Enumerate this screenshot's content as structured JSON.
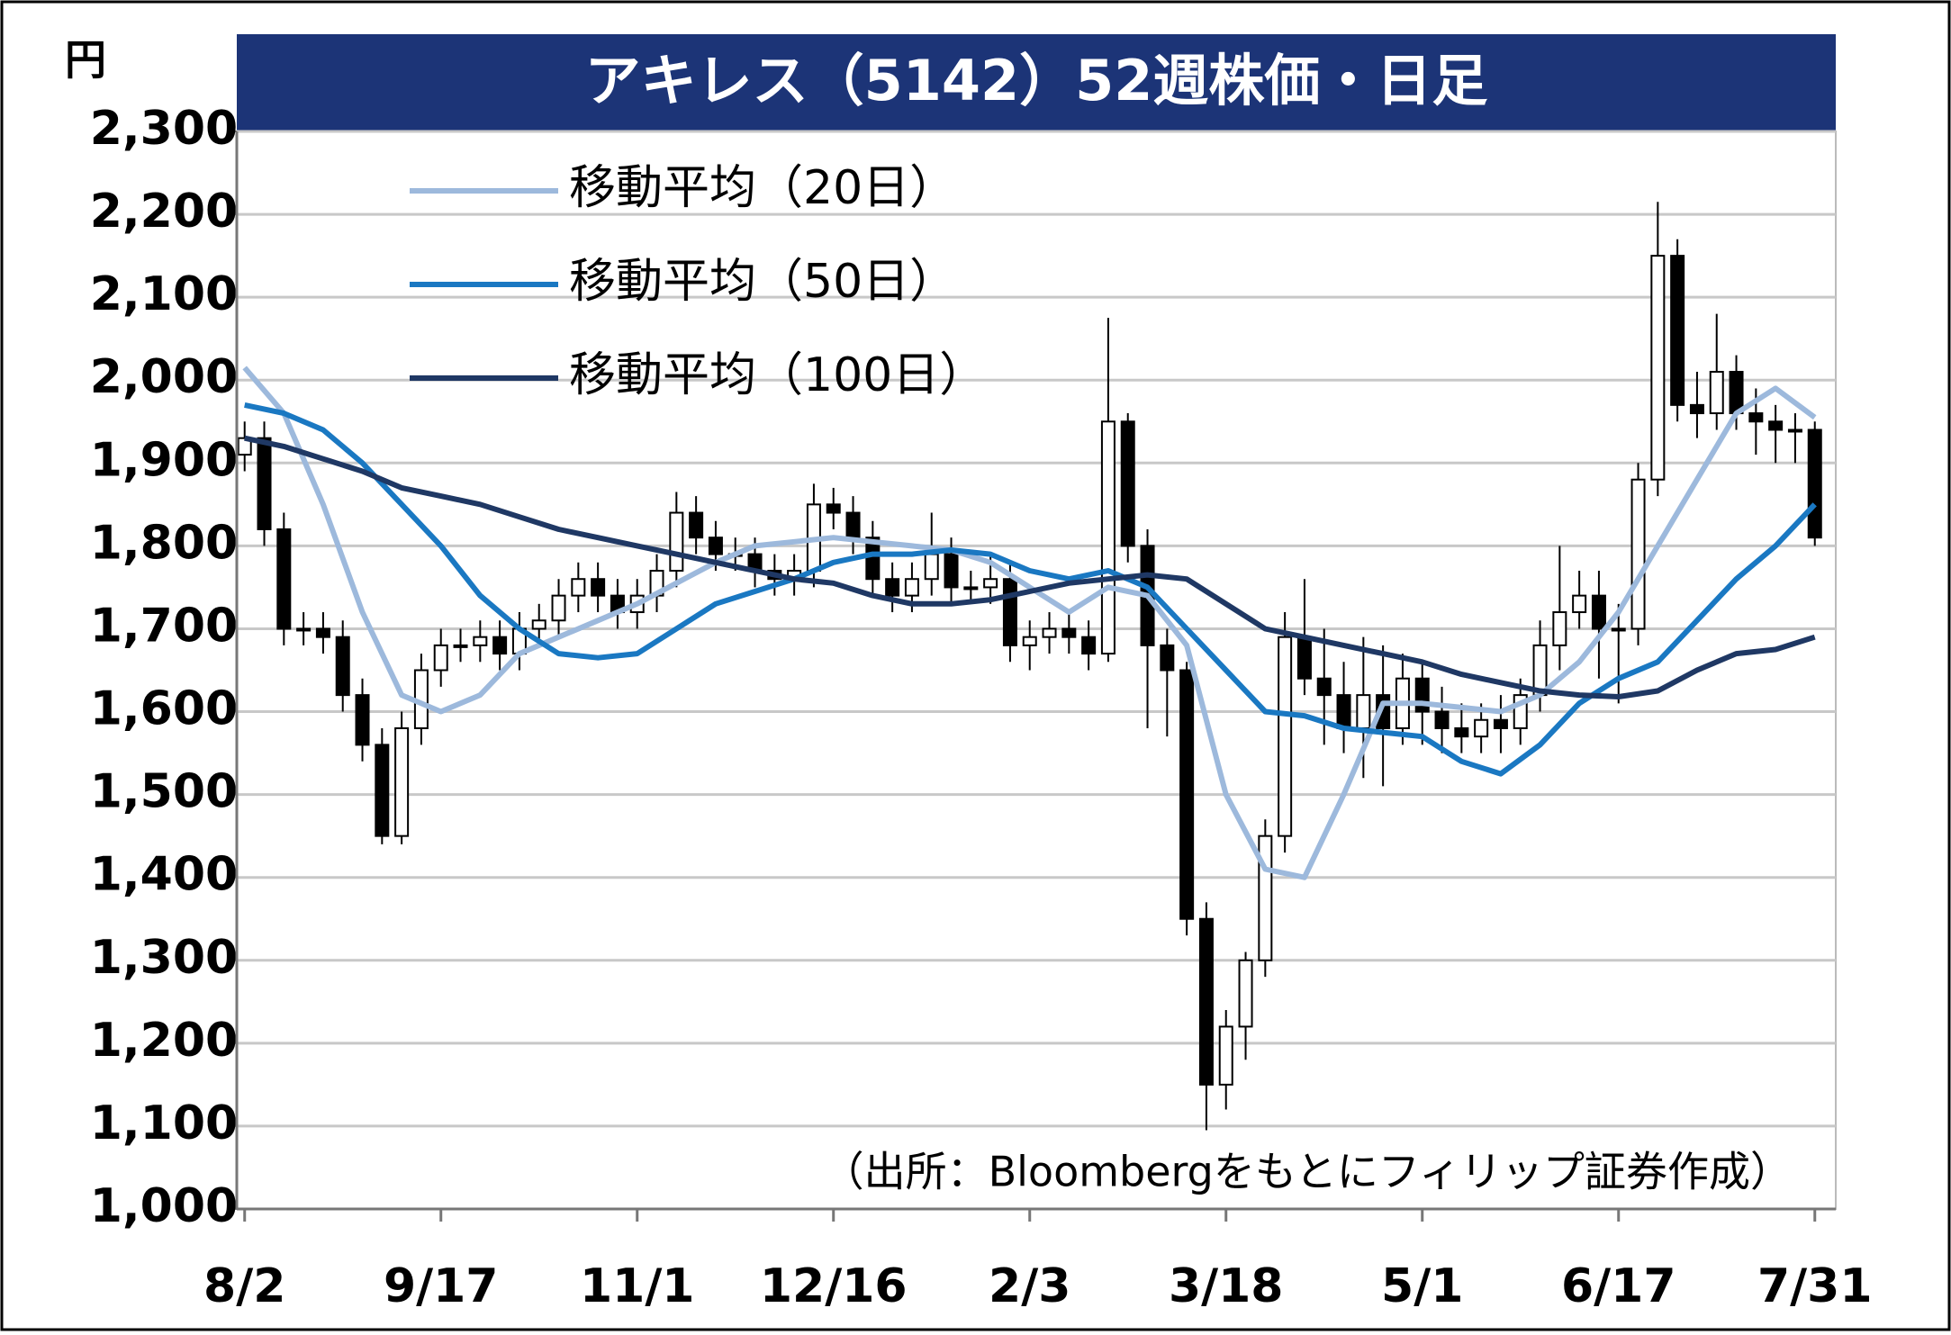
{
  "chart_data": {
    "type": "candlestick",
    "title": "アキレス（5142）52週株価・日足",
    "y_unit": "円",
    "source": "（出所：Bloombergをもとにフィリップ証券作成）",
    "up_color": "#ffffff",
    "down_color": "#000000",
    "grid": true,
    "xlim": [
      -1.2,
      243.2
    ],
    "ylim": [
      1000,
      2300
    ],
    "xticks": [
      {
        "value": 0,
        "label": "8/2"
      },
      {
        "value": 30,
        "label": "9/17"
      },
      {
        "value": 60,
        "label": "11/1"
      },
      {
        "value": 90,
        "label": "12/16"
      },
      {
        "value": 120,
        "label": "2/3"
      },
      {
        "value": 150,
        "label": "3/18"
      },
      {
        "value": 180,
        "label": "5/1"
      },
      {
        "value": 210,
        "label": "6/17"
      },
      {
        "value": 240,
        "label": "7/31"
      }
    ],
    "yticks": [
      {
        "value": 1000,
        "label": "1,000"
      },
      {
        "value": 1100,
        "label": "1,100"
      },
      {
        "value": 1200,
        "label": "1,200"
      },
      {
        "value": 1300,
        "label": "1,300"
      },
      {
        "value": 1400,
        "label": "1,400"
      },
      {
        "value": 1500,
        "label": "1,500"
      },
      {
        "value": 1600,
        "label": "1,600"
      },
      {
        "value": 1700,
        "label": "1,700"
      },
      {
        "value": 1800,
        "label": "1,800"
      },
      {
        "value": 1900,
        "label": "1,900"
      },
      {
        "value": 2000,
        "label": "2,000"
      },
      {
        "value": 2100,
        "label": "2,100"
      },
      {
        "value": 2200,
        "label": "2,200"
      },
      {
        "value": 2300,
        "label": "2,300"
      }
    ],
    "x": [
      0,
      3,
      6,
      9,
      12,
      15,
      18,
      21,
      24,
      27,
      30,
      33,
      36,
      39,
      42,
      45,
      48,
      51,
      54,
      57,
      60,
      63,
      66,
      69,
      72,
      75,
      78,
      81,
      84,
      87,
      90,
      93,
      96,
      99,
      102,
      105,
      108,
      111,
      114,
      117,
      120,
      123,
      126,
      129,
      132,
      135,
      138,
      141,
      144,
      147,
      150,
      153,
      156,
      159,
      162,
      165,
      168,
      171,
      174,
      177,
      180,
      183,
      186,
      189,
      192,
      195,
      198,
      201,
      204,
      207,
      210,
      213,
      216,
      219,
      222,
      225,
      228,
      231,
      234,
      237,
      240
    ],
    "open": [
      1910,
      1930,
      1820,
      1700,
      1700,
      1690,
      1620,
      1560,
      1450,
      1580,
      1650,
      1680,
      1680,
      1690,
      1670,
      1700,
      1710,
      1740,
      1760,
      1740,
      1720,
      1740,
      1770,
      1840,
      1810,
      1790,
      1790,
      1770,
      1760,
      1770,
      1850,
      1840,
      1810,
      1760,
      1740,
      1760,
      1790,
      1750,
      1750,
      1760,
      1680,
      1690,
      1700,
      1690,
      1670,
      1950,
      1800,
      1680,
      1650,
      1350,
      1150,
      1220,
      1300,
      1450,
      1690,
      1640,
      1620,
      1580,
      1620,
      1580,
      1640,
      1600,
      1580,
      1570,
      1590,
      1580,
      1620,
      1680,
      1720,
      1740,
      1700,
      1700,
      1880,
      2150,
      1970,
      1960,
      2010,
      1960,
      1950,
      1940,
      1940
    ],
    "high": [
      1950,
      1950,
      1840,
      1720,
      1720,
      1710,
      1640,
      1580,
      1600,
      1670,
      1700,
      1700,
      1710,
      1710,
      1720,
      1730,
      1760,
      1780,
      1780,
      1760,
      1760,
      1790,
      1865,
      1860,
      1830,
      1810,
      1810,
      1790,
      1790,
      1875,
      1870,
      1860,
      1830,
      1780,
      1780,
      1840,
      1810,
      1770,
      1790,
      1780,
      1710,
      1720,
      1720,
      1710,
      2075,
      1960,
      1820,
      1700,
      1660,
      1370,
      1240,
      1310,
      1470,
      1720,
      1760,
      1700,
      1660,
      1690,
      1680,
      1670,
      1660,
      1630,
      1610,
      1610,
      1620,
      1640,
      1710,
      1800,
      1770,
      1770,
      1730,
      1900,
      2215,
      2170,
      2010,
      2080,
      2030,
      1990,
      1970,
      1960,
      1950
    ],
    "low": [
      1890,
      1800,
      1680,
      1680,
      1670,
      1600,
      1540,
      1440,
      1440,
      1560,
      1630,
      1660,
      1660,
      1650,
      1650,
      1680,
      1690,
      1720,
      1720,
      1700,
      1700,
      1720,
      1750,
      1790,
      1770,
      1770,
      1750,
      1740,
      1740,
      1750,
      1820,
      1790,
      1740,
      1720,
      1720,
      1740,
      1730,
      1730,
      1730,
      1660,
      1650,
      1670,
      1670,
      1650,
      1660,
      1780,
      1580,
      1570,
      1330,
      1095,
      1120,
      1180,
      1280,
      1430,
      1620,
      1560,
      1550,
      1520,
      1510,
      1560,
      1560,
      1550,
      1550,
      1550,
      1550,
      1560,
      1600,
      1650,
      1700,
      1640,
      1610,
      1680,
      1860,
      1950,
      1930,
      1940,
      1940,
      1910,
      1900,
      1900,
      1800
    ],
    "close": [
      1930,
      1820,
      1700,
      1700,
      1690,
      1620,
      1560,
      1450,
      1580,
      1650,
      1680,
      1680,
      1690,
      1670,
      1700,
      1710,
      1740,
      1760,
      1740,
      1720,
      1740,
      1770,
      1840,
      1810,
      1790,
      1790,
      1770,
      1760,
      1770,
      1850,
      1840,
      1810,
      1760,
      1740,
      1760,
      1790,
      1750,
      1750,
      1760,
      1680,
      1690,
      1700,
      1690,
      1670,
      1950,
      1800,
      1680,
      1650,
      1350,
      1150,
      1220,
      1300,
      1450,
      1690,
      1640,
      1620,
      1580,
      1620,
      1580,
      1640,
      1600,
      1580,
      1570,
      1590,
      1580,
      1620,
      1680,
      1720,
      1740,
      1700,
      1700,
      1880,
      2150,
      1970,
      1960,
      2010,
      1960,
      1950,
      1940,
      1940,
      1810
    ],
    "series": [
      {
        "name": "移動平均（20日）",
        "color": "#9db9dc",
        "x": [
          0,
          6,
          12,
          18,
          24,
          30,
          36,
          42,
          48,
          54,
          60,
          66,
          72,
          78,
          84,
          90,
          96,
          102,
          108,
          114,
          120,
          126,
          132,
          138,
          144,
          150,
          156,
          162,
          168,
          174,
          180,
          186,
          192,
          198,
          204,
          210,
          216,
          222,
          228,
          234,
          240
        ],
        "values": [
          2015,
          1960,
          1850,
          1720,
          1620,
          1600,
          1620,
          1670,
          1690,
          1710,
          1730,
          1755,
          1780,
          1800,
          1805,
          1810,
          1805,
          1800,
          1795,
          1780,
          1750,
          1720,
          1750,
          1740,
          1680,
          1500,
          1410,
          1400,
          1500,
          1610,
          1610,
          1605,
          1600,
          1620,
          1660,
          1720,
          1800,
          1880,
          1960,
          1990,
          1955
        ]
      },
      {
        "name": "移動平均（50日）",
        "color": "#1a78c2",
        "x": [
          0,
          6,
          12,
          18,
          24,
          30,
          36,
          42,
          48,
          54,
          60,
          66,
          72,
          78,
          84,
          90,
          96,
          102,
          108,
          114,
          120,
          126,
          132,
          138,
          144,
          150,
          156,
          162,
          168,
          174,
          180,
          186,
          192,
          198,
          204,
          210,
          216,
          222,
          228,
          234,
          240
        ],
        "values": [
          1970,
          1960,
          1940,
          1900,
          1850,
          1800,
          1740,
          1700,
          1670,
          1665,
          1670,
          1700,
          1730,
          1745,
          1760,
          1780,
          1790,
          1790,
          1795,
          1790,
          1770,
          1760,
          1770,
          1750,
          1700,
          1650,
          1600,
          1595,
          1580,
          1575,
          1570,
          1540,
          1525,
          1560,
          1610,
          1640,
          1660,
          1710,
          1760,
          1800,
          1850
        ]
      },
      {
        "name": "移動平均（100日）",
        "color": "#1f3864",
        "x": [
          0,
          6,
          12,
          18,
          24,
          30,
          36,
          42,
          48,
          54,
          60,
          66,
          72,
          78,
          84,
          90,
          96,
          102,
          108,
          114,
          120,
          126,
          132,
          138,
          144,
          150,
          156,
          162,
          168,
          174,
          180,
          186,
          192,
          198,
          204,
          210,
          216,
          222,
          228,
          234,
          240
        ],
        "values": [
          1930,
          1920,
          1905,
          1890,
          1870,
          1860,
          1850,
          1835,
          1820,
          1810,
          1800,
          1790,
          1780,
          1770,
          1760,
          1755,
          1740,
          1730,
          1730,
          1735,
          1745,
          1755,
          1760,
          1765,
          1760,
          1730,
          1700,
          1690,
          1680,
          1670,
          1660,
          1645,
          1635,
          1625,
          1620,
          1618,
          1625,
          1650,
          1670,
          1675,
          1690
        ]
      }
    ]
  }
}
